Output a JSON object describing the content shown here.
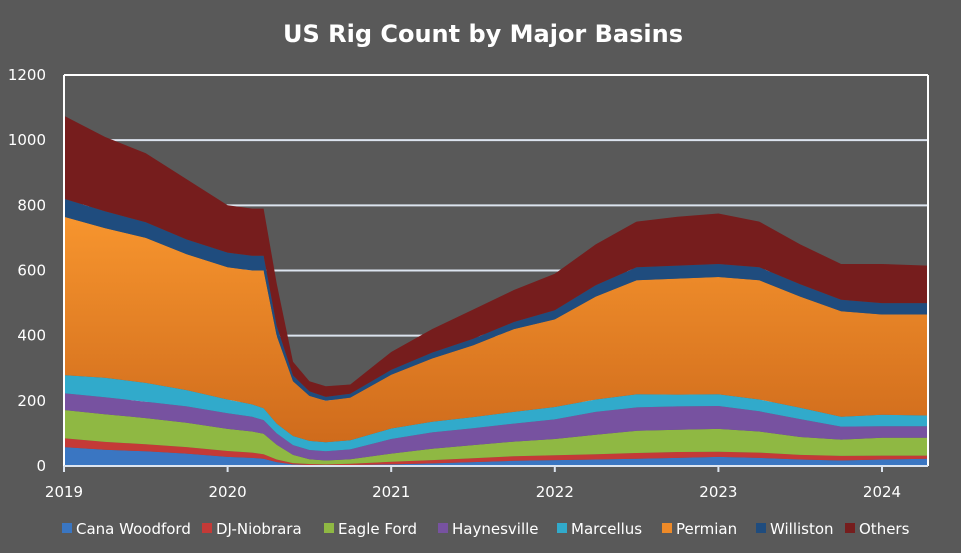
{
  "chart_data": {
    "type": "area",
    "stacked": true,
    "title": "US Rig Count by Major Basins",
    "xlabel": "",
    "ylabel": "",
    "ylim": [
      0,
      1200
    ],
    "yticks": [
      "0",
      "200",
      "400",
      "600",
      "800",
      "1000",
      "1200"
    ],
    "xlim": [
      2019.0,
      2024.28
    ],
    "xticks": [
      "2019",
      "2020",
      "2021",
      "2022",
      "2023",
      "2024"
    ],
    "grid": "horizontal",
    "legend_position": "bottom",
    "background": "#595959",
    "x": [
      2019.0,
      2019.25,
      2019.5,
      2019.75,
      2020.0,
      2020.15,
      2020.22,
      2020.3,
      2020.4,
      2020.5,
      2020.6,
      2020.75,
      2021.0,
      2021.25,
      2021.5,
      2021.75,
      2022.0,
      2022.25,
      2022.5,
      2022.75,
      2023.0,
      2023.25,
      2023.5,
      2023.75,
      2024.0,
      2024.28
    ],
    "series": [
      {
        "name": "Cana Woodford",
        "color": "#3a76c2",
        "values": [
          58,
          50,
          45,
          38,
          28,
          25,
          22,
          12,
          5,
          3,
          2,
          3,
          5,
          8,
          12,
          16,
          18,
          20,
          22,
          25,
          28,
          25,
          20,
          17,
          20,
          22
        ]
      },
      {
        "name": "DJ-Niobrara",
        "color": "#c43a37",
        "values": [
          27,
          24,
          22,
          20,
          18,
          16,
          14,
          8,
          4,
          3,
          3,
          4,
          8,
          10,
          12,
          14,
          15,
          16,
          18,
          18,
          16,
          16,
          14,
          14,
          12,
          10
        ]
      },
      {
        "name": "Eagle Ford",
        "color": "#8fb843",
        "values": [
          87,
          85,
          80,
          75,
          68,
          65,
          63,
          45,
          25,
          15,
          12,
          14,
          25,
          35,
          40,
          45,
          50,
          60,
          68,
          68,
          70,
          65,
          55,
          50,
          55,
          55
        ]
      },
      {
        "name": "Haynesville",
        "color": "#7752a0",
        "values": [
          51,
          52,
          50,
          50,
          48,
          45,
          42,
          35,
          30,
          28,
          28,
          30,
          45,
          50,
          52,
          55,
          60,
          70,
          72,
          72,
          70,
          62,
          55,
          40,
          35,
          35
        ]
      },
      {
        "name": "Marcellus",
        "color": "#31aacb",
        "values": [
          56,
          60,
          58,
          50,
          42,
          38,
          36,
          30,
          28,
          28,
          28,
          28,
          32,
          33,
          34,
          36,
          38,
          38,
          40,
          36,
          36,
          36,
          35,
          30,
          35,
          33
        ]
      },
      {
        "name": "Permian",
        "color": "#ee8a28",
        "values": [
          486,
          459,
          445,
          417,
          406,
          411,
          423,
          270,
          168,
          138,
          127,
          131,
          165,
          194,
          220,
          254,
          269,
          316,
          350,
          356,
          360,
          366,
          341,
          324,
          308,
          310
        ]
      },
      {
        "name": "Williston",
        "color": "#1f4c7e",
        "values": [
          55,
          52,
          48,
          45,
          45,
          45,
          45,
          30,
          18,
          14,
          12,
          12,
          15,
          18,
          20,
          22,
          28,
          35,
          40,
          40,
          40,
          40,
          38,
          35,
          35,
          35
        ]
      },
      {
        "name": "Others",
        "color": "#761d1d",
        "values": [
          255,
          228,
          212,
          185,
          145,
          145,
          145,
          130,
          42,
          31,
          33,
          28,
          55,
          72,
          90,
          98,
          112,
          125,
          140,
          150,
          155,
          140,
          122,
          110,
          120,
          115
        ]
      }
    ]
  }
}
